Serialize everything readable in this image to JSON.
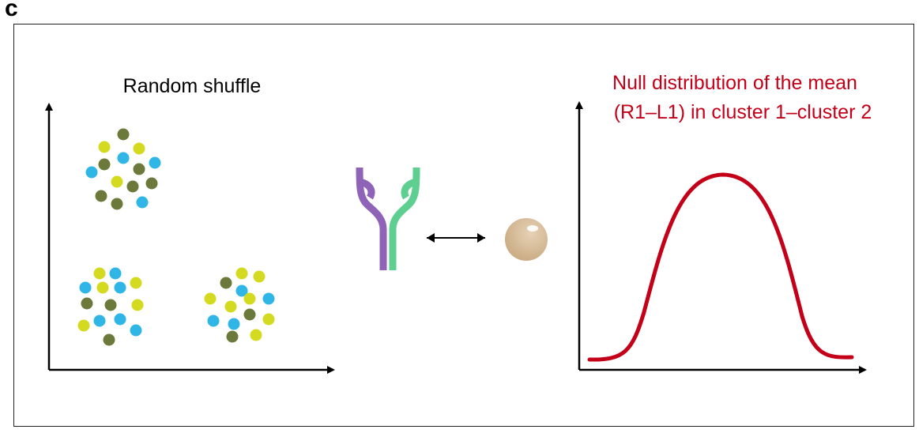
{
  "panel_label": "c",
  "left_panel": {
    "title": "Random shuffle"
  },
  "right_panel": {
    "title_line1": "Null distribution of the mean",
    "title_line2": "(R1–L1) in cluster 1–cluster 2"
  },
  "colors": {
    "frame": "#231f20",
    "axis": "#000000",
    "dot_dark_olive": "#6b7a3a",
    "dot_cyan": "#2fb6e6",
    "dot_yellow": "#d4da1f",
    "receptor_left": "#8f63b8",
    "receptor_right": "#5fcf91",
    "ligand": "#d9bf9c",
    "curve": "#c40019"
  },
  "icons": {
    "receptor": "receptor-icon",
    "ligand": "ligand-icon",
    "double_arrow": "double-arrow-icon"
  }
}
